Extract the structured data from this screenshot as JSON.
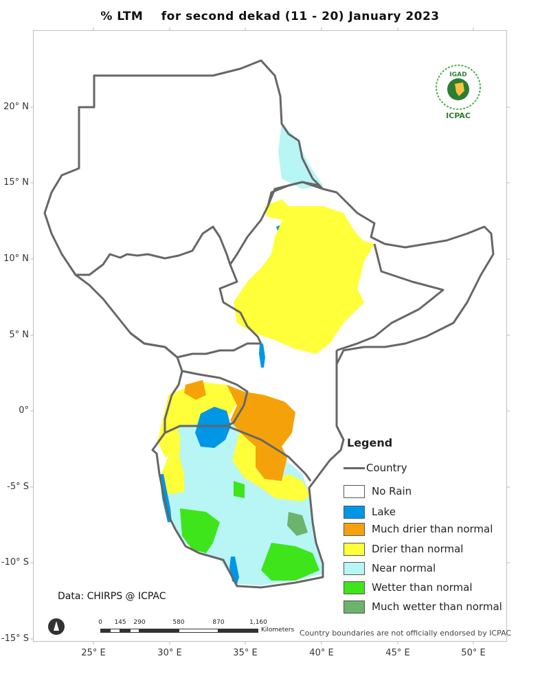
{
  "title": {
    "prefix": "% LTM",
    "suffix": "for second dekad (11 - 20) January 2023"
  },
  "colors": {
    "no_rain": "#ffffff",
    "lake": "#0096e6",
    "much_drier": "#f5a20a",
    "drier": "#ffff3a",
    "near_normal": "#b8f5f5",
    "wetter": "#3ee51a",
    "much_wetter": "#6cb36c",
    "country": "#666666"
  },
  "lat_labels": [
    "20° N",
    "15° N",
    "10° N",
    "5° N",
    "0°",
    "-5° S",
    "-10° S",
    "-15° S"
  ],
  "lon_labels": [
    "25° E",
    "30° E",
    "35° E",
    "40° E",
    "45° E",
    "50° E"
  ],
  "legend": {
    "title": "Legend",
    "items": [
      {
        "label": "Country",
        "key": "country"
      },
      {
        "label": "No Rain",
        "key": "no_rain"
      },
      {
        "label": "Lake",
        "key": "lake"
      },
      {
        "label": "Much drier than normal",
        "key": "much_drier"
      },
      {
        "label": "Drier than normal",
        "key": "drier"
      },
      {
        "label": "Near normal",
        "key": "near_normal"
      },
      {
        "label": "Wetter than normal",
        "key": "wetter"
      },
      {
        "label": "Much wetter than normal",
        "key": "much_wetter"
      }
    ]
  },
  "data_source": "Data: CHIRPS @ ICPAC",
  "disclaimer": "Country boundaries are not officially endorsed by ICPAC",
  "scalebar": {
    "ticks": [
      "0",
      "145",
      "290",
      "580",
      "870",
      "1,160"
    ],
    "unit": "Kilometers"
  },
  "logo": {
    "top": "IGAD",
    "bottom": "ICPAC"
  },
  "north_icon": "north-arrow-icon"
}
